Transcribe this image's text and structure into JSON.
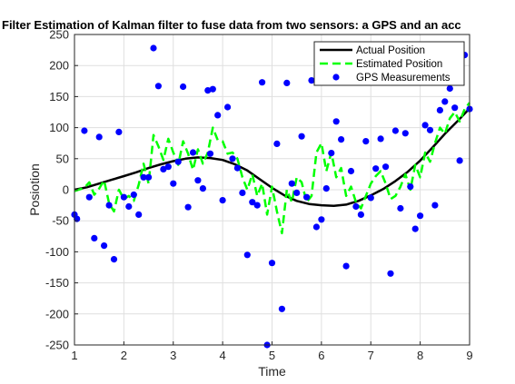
{
  "chart_data": {
    "type": "line",
    "title": "Filter Estimation of Kalman filter to fuse data from two sensors: a GPS and an acc",
    "xlabel": "Time",
    "ylabel": "Posiotion",
    "xlim": [
      1,
      9
    ],
    "ylim": [
      -250,
      250
    ],
    "xticks": [
      1,
      2,
      3,
      4,
      5,
      6,
      7,
      8,
      9
    ],
    "yticks": [
      -250,
      -200,
      -150,
      -100,
      -50,
      0,
      50,
      100,
      150,
      200,
      250
    ],
    "grid": true,
    "legend_position": "top-right",
    "series": [
      {
        "name": "Actual Position",
        "style": "solid",
        "color": "#000000",
        "x": [
          1,
          1.25,
          1.5,
          1.75,
          2,
          2.25,
          2.5,
          2.75,
          3,
          3.25,
          3.5,
          3.75,
          4,
          4.25,
          4.5,
          4.75,
          5,
          5.25,
          5.5,
          5.75,
          6,
          6.25,
          6.5,
          6.75,
          7,
          7.25,
          7.5,
          7.75,
          8,
          8.25,
          8.5,
          8.75,
          9
        ],
        "y": [
          0,
          4,
          10,
          16,
          22,
          28,
          35,
          41,
          46,
          50,
          52,
          51,
          48,
          41,
          31,
          17,
          3,
          -9,
          -18,
          -23,
          -25,
          -26,
          -24,
          -18,
          -9,
          1,
          14,
          29,
          47,
          68,
          90,
          110,
          131
        ]
      },
      {
        "name": "Estimated Position",
        "style": "dashed",
        "color": "#00ff00",
        "x": [
          1,
          1.2,
          1.3,
          1.4,
          1.5,
          1.6,
          1.7,
          1.8,
          1.9,
          2.0,
          2.1,
          2.2,
          2.3,
          2.4,
          2.5,
          2.6,
          2.7,
          2.8,
          2.9,
          3.0,
          3.1,
          3.2,
          3.3,
          3.4,
          3.5,
          3.6,
          3.7,
          3.8,
          3.9,
          4.0,
          4.1,
          4.2,
          4.3,
          4.4,
          4.5,
          4.6,
          4.7,
          4.8,
          4.9,
          5.0,
          5.1,
          5.2,
          5.3,
          5.4,
          5.5,
          5.6,
          5.7,
          5.8,
          5.9,
          6.0,
          6.1,
          6.2,
          6.3,
          6.4,
          6.5,
          6.6,
          6.7,
          6.8,
          6.9,
          7.0,
          7.1,
          7.2,
          7.3,
          7.4,
          7.5,
          7.6,
          7.7,
          7.8,
          7.9,
          8.0,
          8.1,
          8.2,
          8.3,
          8.4,
          8.5,
          8.6,
          8.7,
          8.8,
          8.9,
          9.0
        ],
        "y": [
          -2,
          3,
          12,
          -8,
          2,
          15,
          -22,
          -35,
          0,
          -15,
          -10,
          -18,
          8,
          42,
          10,
          88,
          70,
          48,
          82,
          60,
          40,
          78,
          58,
          32,
          65,
          42,
          60,
          100,
          80,
          78,
          58,
          60,
          50,
          20,
          0,
          25,
          -10,
          10,
          -40,
          5,
          -35,
          -70,
          0,
          -20,
          20,
          12,
          -20,
          -10,
          60,
          75,
          30,
          60,
          20,
          35,
          -10,
          5,
          -20,
          -30,
          -10,
          10,
          22,
          30,
          10,
          -15,
          -10,
          5,
          25,
          0,
          40,
          20,
          60,
          45,
          75,
          100,
          90,
          115,
          125,
          110,
          130,
          140
        ]
      },
      {
        "name": "GPS Measurements",
        "style": "markers",
        "color": "#0000ff",
        "x": [
          1.0,
          1.05,
          1.2,
          1.3,
          1.4,
          1.5,
          1.6,
          1.7,
          1.8,
          1.9,
          2.0,
          2.1,
          2.2,
          2.3,
          2.4,
          2.5,
          2.6,
          2.7,
          2.8,
          2.9,
          3.0,
          3.1,
          3.2,
          3.3,
          3.4,
          3.5,
          3.6,
          3.7,
          3.75,
          3.8,
          3.9,
          4.0,
          4.1,
          4.2,
          4.3,
          4.4,
          4.5,
          4.6,
          4.7,
          4.8,
          4.9,
          5.0,
          5.1,
          5.2,
          5.3,
          5.4,
          5.5,
          5.6,
          5.7,
          5.8,
          5.9,
          6.0,
          6.1,
          6.2,
          6.3,
          6.4,
          6.5,
          6.6,
          6.7,
          6.8,
          6.9,
          7.0,
          7.1,
          7.2,
          7.3,
          7.4,
          7.5,
          7.6,
          7.7,
          7.8,
          7.9,
          8.0,
          8.1,
          8.2,
          8.3,
          8.4,
          8.5,
          8.6,
          8.7,
          8.8,
          8.9,
          9.0
        ],
        "y": [
          -40,
          -47,
          95,
          -12,
          -78,
          85,
          -90,
          -25,
          -112,
          93,
          -12,
          -27,
          -8,
          -40,
          20,
          20,
          228,
          167,
          33,
          37,
          10,
          45,
          166,
          -28,
          60,
          15,
          2,
          160,
          58,
          162,
          120,
          -17,
          133,
          50,
          35,
          -5,
          -105,
          -20,
          -25,
          173,
          -250,
          -118,
          74,
          -192,
          172,
          10,
          -5,
          86,
          -12,
          176,
          -60,
          -48,
          2,
          59,
          110,
          81,
          -123,
          30,
          -27,
          -40,
          78,
          -13,
          34,
          82,
          37,
          -135,
          95,
          -30,
          91,
          5,
          -63,
          -42,
          104,
          96,
          -25,
          128,
          142,
          163,
          132,
          47,
          217,
          130
        ]
      }
    ]
  }
}
